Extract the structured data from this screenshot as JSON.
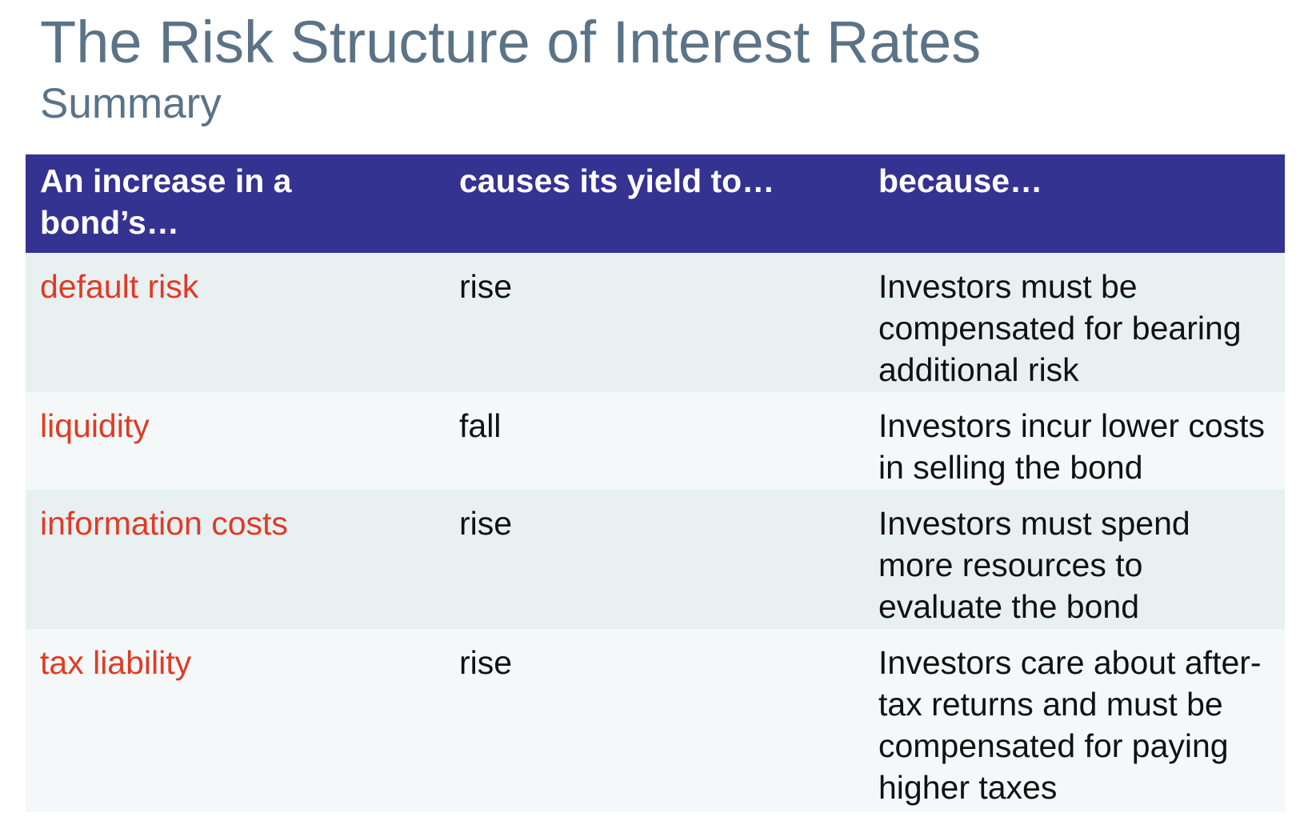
{
  "slide": {
    "title": "The Risk Structure of Interest Rates",
    "subtitle": "Summary"
  },
  "table": {
    "headers": [
      "An increase in a bond’s…",
      "causes its yield to…",
      "because…"
    ],
    "rows": [
      {
        "factor": "default risk",
        "effect": "rise",
        "reason": "Investors must be compensated for bearing additional risk"
      },
      {
        "factor": "liquidity",
        "effect": "fall",
        "reason": "Investors incur lower costs in selling the bond"
      },
      {
        "factor": "information costs",
        "effect": "rise",
        "reason": "Investors must spend more resources to evaluate the bond"
      },
      {
        "factor": "tax liability",
        "effect": "rise",
        "reason": "Investors care about after-tax returns and must be compensated for paying higher taxes"
      }
    ]
  },
  "colors": {
    "title": "#5B7387",
    "header_background": "#343391",
    "header_text": "#FFFFFF",
    "row_background_odd": "#E8F0F1",
    "row_background_even": "#F4F8F8",
    "factor_text": "#E03A25",
    "body_text": "#111111"
  }
}
